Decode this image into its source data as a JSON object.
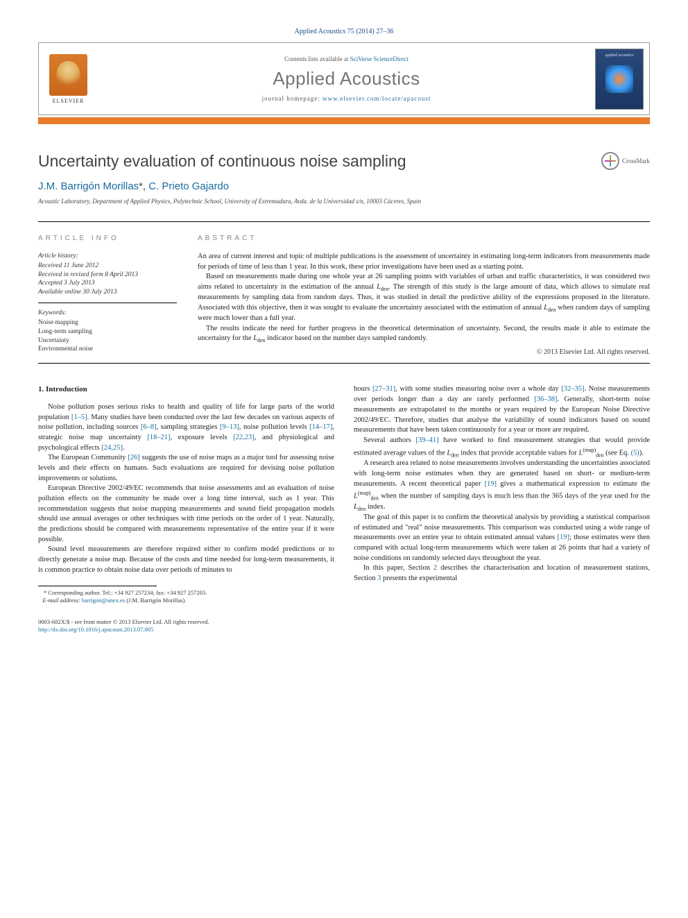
{
  "top_reference": "Applied Acoustics 75 (2014) 27–36",
  "header": {
    "publisher": "ELSEVIER",
    "contents_prefix": "Contents lists available at ",
    "contents_link": "SciVerse ScienceDirect",
    "journal": "Applied Acoustics",
    "homepage_prefix": "journal homepage: ",
    "homepage_url": "www.elsevier.com/locate/apacoust",
    "cover_label": "applied acoustics"
  },
  "crossmark_label": "CrossMark",
  "title": "Uncertainty evaluation of continuous noise sampling",
  "authors": {
    "a1": "J.M. Barrigón Morillas",
    "star": "*",
    "sep": ", ",
    "a2": "C. Prieto Gajardo"
  },
  "affiliation": "Acoustic Laboratory, Department of Applied Physics, Polytechnic School, University of Extremadura, Avda. de la Universidad s/n, 10003 Cáceres, Spain",
  "info": {
    "label": "ARTICLE INFO",
    "history_hdr": "Article history:",
    "h1": "Received 11 June 2012",
    "h2": "Received in revised form 8 April 2013",
    "h3": "Accepted 3 July 2013",
    "h4": "Available online 30 July 2013",
    "keywords_hdr": "Keywords:",
    "k1": "Noise mapping",
    "k2": "Long-term sampling",
    "k3": "Uncertainty",
    "k4": "Environmental noise"
  },
  "abstract": {
    "label": "ABSTRACT",
    "p1": "An area of current interest and topic of multiple publications is the assessment of uncertainty in estimating long-term indicators from measurements made for periods of time of less than 1 year. In this work, these prior investigations have been used as a starting point.",
    "p2a": "Based on measurements made during one whole year at 26 sampling points with variables of urban and traffic characteristics, it was considered two aims related to uncertainty in the estimation of the annual ",
    "p2_lden1": "L",
    "p2_sub1": "den",
    "p2b": ". The strength of this study is the large amount of data, which allows to simulate real measurements by sampling data from random days. Thus, it was studied in detail the predictive ability of the expressions proposed in the literature. Associated with this objective, then it was sought to evaluate the uncertainty associated with the estimation of annual ",
    "p2_lden2": "L",
    "p2_sub2": "den",
    "p2c": " when random days of sampling were much lower than a full year.",
    "p3a": "The results indicate the need for further progress in the theoretical determination of uncertainty. Second, the results made it able to estimate the uncertainty for the ",
    "p3_lden": "L",
    "p3_sub": "den",
    "p3b": " indicator based on the number days sampled randomly.",
    "copyright": "© 2013 Elsevier Ltd. All rights reserved."
  },
  "body": {
    "intro_hdr": "1. Introduction",
    "l1a": "Noise pollution poses serious risks to health and quality of life for large parts of the world population ",
    "l1r1": "[1–5]",
    "l1b": ". Many studies have been conducted over the last few decades on various aspects of noise pollution, including sources ",
    "l1r2": "[6–8]",
    "l1c": ", sampling strategies ",
    "l1r3": "[9–13]",
    "l1d": ", noise pollution levels ",
    "l1r4": "[14–17]",
    "l1e": ", strategic noise map uncertainty ",
    "l1r5": "[18–21]",
    "l1f": ", exposure levels ",
    "l1r6": "[22,23]",
    "l1g": ", and physiological and psychological effects ",
    "l1r7": "[24,25]",
    "l1h": ".",
    "l2a": "The European Community ",
    "l2r1": "[26]",
    "l2b": " suggests the use of noise maps as a major tool for assessing noise levels and their effects on humans. Such evaluations are required for devising noise pollution improvements or solutions.",
    "l3": "European Directive 2002/49/EC recommends that noise assessments and an evaluation of noise pollution effects on the community be made over a long time interval, such as 1 year. This recommendation suggests that noise mapping measurements and sound field propagation models should use annual averages or other techniques with time periods on the order of 1 year. Naturally, the predictions should be compared with measurements representative of the entire year if it were possible.",
    "l4": "Sound level measurements are therefore required either to confirm model predictions or to directly generate a noise map. Because of the costs and time needed for long-term measurements, it is common practice to obtain noise data over periods of minutes to",
    "r1a": "hours ",
    "r1r1": "[27–31]",
    "r1b": ", with some studies measuring noise over a whole day ",
    "r1r2": "[32–35]",
    "r1c": ". Noise measurements over periods longer than a day are rarely performed ",
    "r1r3": "[36–38]",
    "r1d": ". Generally, short-term noise measurements are extrapolated to the months or years required by the European Noise Directive 2002/49/EC. Therefore, studies that analyse the variability of sound indicators based on sound measurements that have been taken continuously for a year or more are required.",
    "r2a": "Several authors ",
    "r2r1": "[39–41]",
    "r2b": " have worked to find measurement strategies that would provide estimated average values of the ",
    "r2_L1": "L",
    "r2_s1": "den",
    "r2c": " index that provide acceptable values for ",
    "r2_L2": "L",
    "r2_sup": "(map)",
    "r2_s2": "den",
    "r2d": " (see Eq. ",
    "r2r2": "(5)",
    "r2e": ").",
    "r3a": "A research area related to noise measurements involves understanding the uncertainties associated with long-term noise estimates when they are generated based on short- or medium-term measurements. A recent theoretical paper ",
    "r3r1": "[19]",
    "r3b": " gives a mathematical expression to estimate the ",
    "r3_L": "L",
    "r3_sup": "(map)",
    "r3_sub": "den",
    "r3c": " when the number of sampling days is much less than the 365 days of the year used for the ",
    "r3_L2": "L",
    "r3_s2": "den",
    "r3d": " index.",
    "r4a": "The goal of this paper is to confirm the theoretical analysis by providing a statistical comparison of estimated and \"real\" noise measurements. This comparison was conducted using a wide range of measurements over an entire year to obtain estimated annual values ",
    "r4r1": "[19]",
    "r4b": "; those estimates were then compared with actual long-term measurements which were taken at 26 points that had a variety of noise conditions on randomly selected days throughout the year.",
    "r5a": "In this paper, Section ",
    "r5r1": "2",
    "r5b": " describes the characterisation and location of measurement stations, Section ",
    "r5r2": "3",
    "r5c": " presents the experimental"
  },
  "footnote": {
    "star": "*",
    "corr": " Corresponding author. Tel.: +34 927 257234; fax: +34 927 257203.",
    "email_lbl": "E-mail address: ",
    "email": "barrigon@unex.es",
    "email_who": " (J.M. Barrigón Morillas)."
  },
  "bottom": {
    "line1": "0003-682X/$ - see front matter © 2013 Elsevier Ltd. All rights reserved.",
    "doi": "http://dx.doi.org/10.1016/j.apacoust.2013.07.005"
  },
  "colors": {
    "link": "#1a6b9c",
    "orange_bar": "#e87a2a",
    "title_gray": "#424242",
    "journal_gray": "#747474"
  }
}
